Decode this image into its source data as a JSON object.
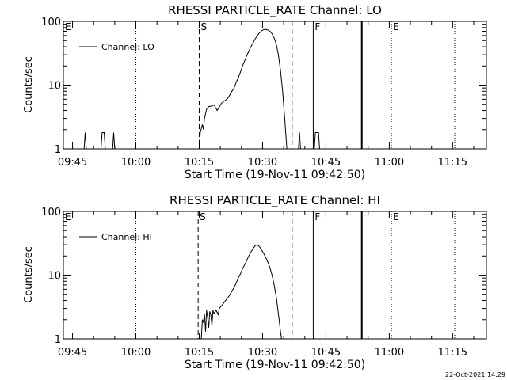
{
  "footer": {
    "timestamp": "22-Oct-2021 14:29"
  },
  "chart_data": [
    {
      "type": "line",
      "title": "RHESSI PARTICLE_RATE Channel: LO",
      "xlabel": "Start Time (19-Nov-11 09:42:50)",
      "ylabel": "Counts/sec",
      "y_scale": "log",
      "ylim": [
        1,
        100
      ],
      "xlim": [
        "09:42:50",
        "11:23:00"
      ],
      "x_ticks": [
        "09:45",
        "10:00",
        "10:15",
        "10:30",
        "10:45",
        "11:00",
        "11:15"
      ],
      "y_ticks": [
        "1",
        "10",
        "100"
      ],
      "legend": {
        "position": "top-left",
        "entries": [
          "Channel: LO"
        ]
      },
      "markers": [
        {
          "label": "E",
          "time": "09:42:50",
          "style": "dotted"
        },
        {
          "label": "",
          "time": "10:00:00",
          "style": "dotted"
        },
        {
          "label": "S",
          "time": "10:15:00",
          "style": "dashed"
        },
        {
          "label": "",
          "time": "10:37:00",
          "style": "dashed"
        },
        {
          "label": "F",
          "time": "10:42:00",
          "style": "solid"
        },
        {
          "label": "",
          "time": "10:53:30",
          "style": "solid-thick"
        },
        {
          "label": "E",
          "time": "11:00:30",
          "style": "dotted"
        },
        {
          "label": "",
          "time": "11:15:30",
          "style": "dotted"
        }
      ],
      "series": [
        {
          "name": "Channel: LO",
          "points": [
            [
              "09:43:30",
              1
            ],
            [
              "09:47:45",
              1
            ],
            [
              "09:48:00",
              1.8
            ],
            [
              "09:48:15",
              1
            ],
            [
              "09:51:45",
              1
            ],
            [
              "09:52:00",
              1.8
            ],
            [
              "09:52:30",
              1.8
            ],
            [
              "09:52:45",
              1
            ],
            [
              "09:54:30",
              1
            ],
            [
              "09:54:45",
              1.8
            ],
            [
              "09:55:00",
              1
            ],
            [
              "10:15:00",
              1
            ],
            [
              "10:15:15",
              1.8
            ],
            [
              "10:15:45",
              2.4
            ],
            [
              "10:16:00",
              2
            ],
            [
              "10:16:15",
              3
            ],
            [
              "10:16:45",
              4.2
            ],
            [
              "10:17:15",
              4.6
            ],
            [
              "10:18:00",
              4.7
            ],
            [
              "10:18:30",
              4.9
            ],
            [
              "10:19:00",
              4.3
            ],
            [
              "10:19:15",
              4
            ],
            [
              "10:19:45",
              4.5
            ],
            [
              "10:20:15",
              5.2
            ],
            [
              "10:20:45",
              5.5
            ],
            [
              "10:21:15",
              5.8
            ],
            [
              "10:21:45",
              6.2
            ],
            [
              "10:22:15",
              7
            ],
            [
              "10:22:45",
              8
            ],
            [
              "10:23:15",
              9
            ],
            [
              "10:23:45",
              11
            ],
            [
              "10:24:15",
              13
            ],
            [
              "10:24:45",
              16
            ],
            [
              "10:25:15",
              20
            ],
            [
              "10:25:45",
              24
            ],
            [
              "10:26:15",
              29
            ],
            [
              "10:26:45",
              34
            ],
            [
              "10:27:15",
              40
            ],
            [
              "10:27:45",
              46
            ],
            [
              "10:28:15",
              53
            ],
            [
              "10:28:45",
              60
            ],
            [
              "10:29:15",
              66
            ],
            [
              "10:29:45",
              71
            ],
            [
              "10:30:15",
              74
            ],
            [
              "10:30:45",
              75
            ],
            [
              "10:31:15",
              73
            ],
            [
              "10:31:45",
              70
            ],
            [
              "10:32:15",
              64
            ],
            [
              "10:32:45",
              55
            ],
            [
              "10:33:15",
              44
            ],
            [
              "10:33:45",
              30
            ],
            [
              "10:34:15",
              17
            ],
            [
              "10:34:45",
              8
            ],
            [
              "10:35:15",
              3
            ],
            [
              "10:35:45",
              1
            ],
            [
              "10:38:30",
              1
            ],
            [
              "10:38:45",
              1.8
            ],
            [
              "10:39:00",
              1
            ],
            [
              "10:42:15",
              1
            ],
            [
              "10:42:30",
              1.8
            ],
            [
              "10:43:00",
              1.8
            ],
            [
              "10:43:15",
              1.8
            ],
            [
              "10:43:30",
              1
            ]
          ]
        }
      ]
    },
    {
      "type": "line",
      "title": "RHESSI PARTICLE_RATE Channel: HI",
      "xlabel": "Start Time (19-Nov-11 09:42:50)",
      "ylabel": "Counts/sec",
      "y_scale": "log",
      "ylim": [
        1,
        100
      ],
      "xlim": [
        "09:42:50",
        "11:23:00"
      ],
      "x_ticks": [
        "09:45",
        "10:00",
        "10:15",
        "10:30",
        "10:45",
        "11:00",
        "11:15"
      ],
      "y_ticks": [
        "1",
        "10",
        "100"
      ],
      "legend": {
        "position": "top-left",
        "entries": [
          "Channel: HI"
        ]
      },
      "markers": [
        {
          "label": "E",
          "time": "09:42:50",
          "style": "dotted"
        },
        {
          "label": "",
          "time": "10:00:00",
          "style": "dotted"
        },
        {
          "label": "S",
          "time": "10:14:45",
          "style": "dashed"
        },
        {
          "label": "",
          "time": "10:37:00",
          "style": "dashed"
        },
        {
          "label": "F",
          "time": "10:42:00",
          "style": "solid"
        },
        {
          "label": "",
          "time": "10:53:30",
          "style": "solid-thick"
        },
        {
          "label": "E",
          "time": "11:00:30",
          "style": "dotted"
        },
        {
          "label": "",
          "time": "11:15:30",
          "style": "dotted"
        }
      ],
      "series": [
        {
          "name": "Channel: HI",
          "points": [
            [
              "10:15:30",
              1
            ],
            [
              "10:15:45",
              2
            ],
            [
              "10:16:00",
              1.8
            ],
            [
              "10:16:15",
              2.5
            ],
            [
              "10:16:30",
              1.3
            ],
            [
              "10:16:45",
              2.8
            ],
            [
              "10:17:00",
              2.2
            ],
            [
              "10:17:15",
              1.5
            ],
            [
              "10:17:30",
              2.7
            ],
            [
              "10:17:45",
              2.4
            ],
            [
              "10:18:00",
              1.6
            ],
            [
              "10:18:15",
              2.8
            ],
            [
              "10:18:30",
              2.5
            ],
            [
              "10:19:00",
              2.8
            ],
            [
              "10:19:30",
              2.4
            ],
            [
              "10:19:45",
              3
            ],
            [
              "10:20:15",
              3.3
            ],
            [
              "10:20:45",
              3.6
            ],
            [
              "10:21:15",
              4
            ],
            [
              "10:21:45",
              4.4
            ],
            [
              "10:22:15",
              4.9
            ],
            [
              "10:22:45",
              5.6
            ],
            [
              "10:23:15",
              6.4
            ],
            [
              "10:23:45",
              7.5
            ],
            [
              "10:24:15",
              9
            ],
            [
              "10:24:45",
              10.5
            ],
            [
              "10:25:15",
              12.5
            ],
            [
              "10:25:45",
              14.5
            ],
            [
              "10:26:15",
              17
            ],
            [
              "10:26:45",
              20
            ],
            [
              "10:27:15",
              23
            ],
            [
              "10:27:45",
              26
            ],
            [
              "10:28:15",
              29
            ],
            [
              "10:28:45",
              30
            ],
            [
              "10:29:15",
              28
            ],
            [
              "10:29:45",
              25
            ],
            [
              "10:30:15",
              22
            ],
            [
              "10:30:45",
              19
            ],
            [
              "10:31:15",
              16
            ],
            [
              "10:31:45",
              13
            ],
            [
              "10:32:15",
              10
            ],
            [
              "10:32:45",
              7
            ],
            [
              "10:33:15",
              4.5
            ],
            [
              "10:33:45",
              2.5
            ],
            [
              "10:34:15",
              1.3
            ],
            [
              "10:34:30",
              1
            ]
          ]
        }
      ]
    }
  ]
}
